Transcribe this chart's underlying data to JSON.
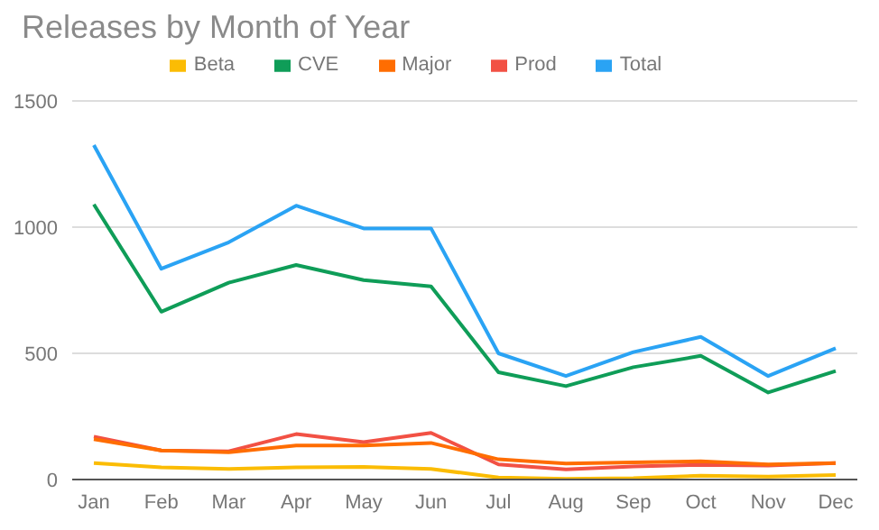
{
  "chart_data": {
    "type": "line",
    "title": "Releases by Month of Year",
    "categories": [
      "Jan",
      "Feb",
      "Mar",
      "Apr",
      "May",
      "Jun",
      "Jul",
      "Aug",
      "Sep",
      "Oct",
      "Nov",
      "Dec"
    ],
    "series": [
      {
        "name": "Total",
        "color": "#2aa3f4",
        "values": [
          1325,
          835,
          940,
          1085,
          995,
          995,
          500,
          410,
          505,
          565,
          410,
          520
        ]
      },
      {
        "name": "Prod",
        "color": "#f25144",
        "values": [
          170,
          115,
          112,
          180,
          148,
          185,
          60,
          40,
          52,
          58,
          55,
          65
        ]
      },
      {
        "name": "Beta",
        "color": "#fbbc04",
        "values": [
          65,
          48,
          42,
          48,
          50,
          42,
          8,
          3,
          5,
          15,
          12,
          18
        ]
      },
      {
        "name": "CVE",
        "color": "#0f9d58",
        "values": [
          1090,
          665,
          780,
          850,
          790,
          765,
          425,
          370,
          445,
          490,
          345,
          430
        ]
      },
      {
        "name": "Major",
        "color": "#ff6d01",
        "values": [
          160,
          115,
          108,
          135,
          135,
          145,
          80,
          63,
          68,
          72,
          60,
          65
        ]
      }
    ],
    "ylim": [
      0,
      1500
    ],
    "yticks": [
      0,
      500,
      1000,
      1500
    ],
    "grid": "y",
    "legend": "top",
    "marker": "none",
    "line_style": "solid"
  }
}
